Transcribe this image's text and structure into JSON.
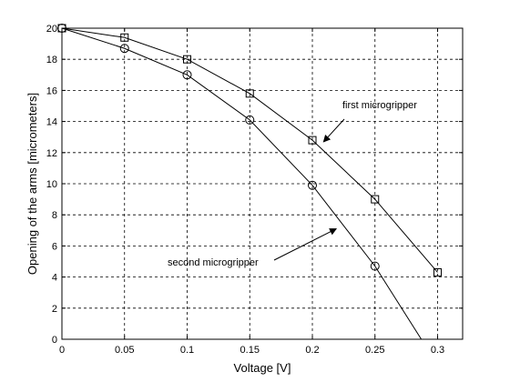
{
  "chart_data": {
    "type": "line",
    "xlabel": "Voltage [V]",
    "ylabel": "Opening of the arms [micrometers]",
    "xlim": [
      0,
      0.32
    ],
    "ylim": [
      0,
      20
    ],
    "xticks": [
      0,
      0.05,
      0.1,
      0.15,
      0.2,
      0.25,
      0.3
    ],
    "xtick_labels": [
      "0",
      "0.05",
      "0.1",
      "0.15",
      "0.2",
      "0.25",
      "0.3"
    ],
    "yticks": [
      0,
      2,
      4,
      6,
      8,
      10,
      12,
      14,
      16,
      18,
      20
    ],
    "ytick_labels": [
      "0",
      "2",
      "4",
      "6",
      "8",
      "10",
      "12",
      "14",
      "16",
      "18",
      "20"
    ],
    "grid": true,
    "series": [
      {
        "name": "first microgripper",
        "marker": "square",
        "x": [
          0,
          0.05,
          0.1,
          0.15,
          0.2,
          0.25,
          0.3
        ],
        "y": [
          20,
          19.4,
          18.0,
          15.8,
          12.8,
          9.0,
          4.3
        ]
      },
      {
        "name": "second microgripper",
        "marker": "circle",
        "x": [
          0,
          0.05,
          0.1,
          0.15,
          0.2,
          0.25,
          0.287
        ],
        "y": [
          20,
          18.7,
          17.0,
          14.1,
          9.9,
          4.7,
          0
        ],
        "marked_points": 6
      }
    ],
    "annotations": [
      {
        "text": "first microgripper",
        "points_to": [
          0.209,
          12.7
        ]
      },
      {
        "text": "second microgripper",
        "points_to": [
          0.219,
          7.1
        ]
      }
    ]
  }
}
